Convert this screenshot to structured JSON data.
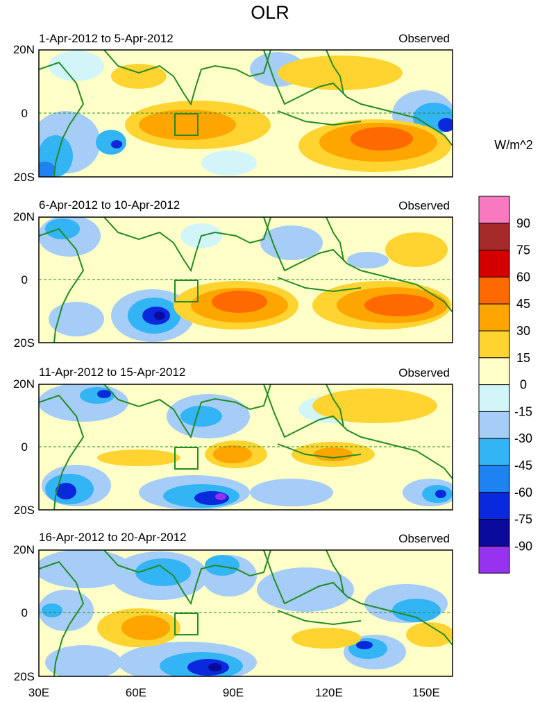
{
  "title": "OLR",
  "units": "W/m^2",
  "legend_label": "Observed",
  "colorbar": {
    "levels": [
      "90",
      "75",
      "60",
      "45",
      "30",
      "15",
      "0",
      "-15",
      "-30",
      "-45",
      "-60",
      "-75",
      "-90"
    ],
    "colors": [
      "#f77ac0",
      "#a52a2a",
      "#d40000",
      "#ff6a00",
      "#ffa500",
      "#ffd330",
      "#ffffc8",
      "#d2f5fa",
      "#a5cdf8",
      "#32b4f5",
      "#1e82f0",
      "#0a28dc",
      "#0a0a9b",
      "#9632f0"
    ]
  },
  "axis": {
    "lat_ticks": [
      "20N",
      "0",
      "20S"
    ],
    "lon_ticks": [
      "30E",
      "60E",
      "90E",
      "120E",
      "150E"
    ]
  },
  "panels": [
    {
      "date_range": "1-Apr-2012 to 5-Apr-2012"
    },
    {
      "date_range": "6-Apr-2012 to 10-Apr-2012"
    },
    {
      "date_range": "11-Apr-2012 to 15-Apr-2012"
    },
    {
      "date_range": "16-Apr-2012 to 20-Apr-2012"
    }
  ]
}
